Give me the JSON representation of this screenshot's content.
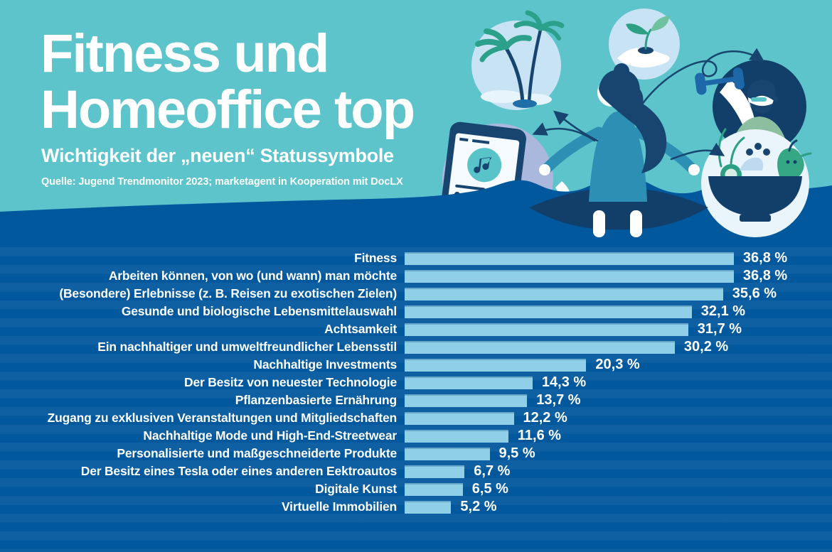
{
  "header": {
    "title_line1": "Fitness und",
    "title_line2": "Homeoffice top",
    "subtitle": "Wichtigkeit der „neuen“ Statussymbole",
    "source": "Quelle: Jugend Trendmonitor 2023; marketagent in Kooperation mit DocLX"
  },
  "colors": {
    "teal_background": "#5CC4CA",
    "section_blue": "#01589D",
    "bar_color": "#8FD0E8",
    "text_color": "#FFFFFF"
  },
  "illustration": {
    "description": "Meditating woman surrounded by circular icons connected with curved arrows",
    "icons": [
      "music-phone-icon",
      "travel-palm-icon",
      "sustainability-plant-icon",
      "fitness-dumbbell-icon",
      "healthy-food-bowl-icon",
      "meditating-person-illustration"
    ]
  },
  "chart_data": {
    "type": "bar",
    "orientation": "horizontal",
    "title": "Wichtigkeit der „neuen“ Statussymbole",
    "unit": "%",
    "xlim": [
      0,
      38
    ],
    "grid": false,
    "value_label_position": "end-of-bar",
    "bar_color": "#8FD0E8",
    "background_color": "#01589D",
    "categories": [
      "Fitness",
      "Arbeiten können, von wo (und wann) man möchte",
      "(Besondere) Erlebnisse (z. B. Reisen zu exotischen Zielen)",
      "Gesunde und biologische Lebensmittelauswahl",
      "Achtsamkeit",
      "Ein nachhaltiger und umweltfreundlicher Lebensstil",
      "Nachhaltige Investments",
      "Der Besitz von neuester Technologie",
      "Pflanzenbasierte Ernährung",
      "Zugang zu exklusiven Veranstaltungen und Mitgliedschaften",
      "Nachhaltige Mode und High-End-Streetwear",
      "Personalisierte und maßgeschneiderte Produkte",
      "Der Besitz eines Tesla oder eines anderen Eektroautos",
      "Digitale Kunst",
      "Virtuelle Immobilien"
    ],
    "values": [
      36.8,
      36.8,
      35.6,
      32.1,
      31.7,
      30.2,
      20.3,
      14.3,
      13.7,
      12.2,
      11.6,
      9.5,
      6.7,
      6.5,
      5.2
    ],
    "value_labels": [
      "36,8 %",
      "36,8 %",
      "35,6 %",
      "32,1 %",
      "31,7 %",
      "30,2 %",
      "20,3 %",
      "14,3 %",
      "13,7 %",
      "12,2 %",
      "11,6 %",
      "9,5 %",
      "6,7 %",
      "6,5 %",
      "5,2 %"
    ]
  }
}
